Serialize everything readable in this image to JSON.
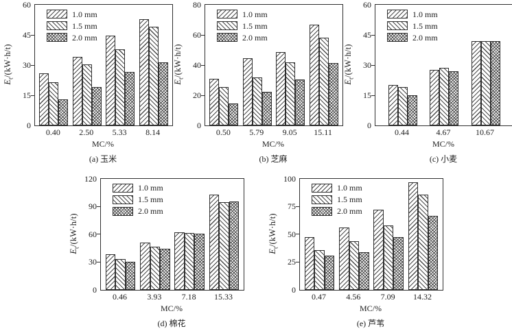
{
  "figure": {
    "background": "#ffffff",
    "axis_color": "#2e2e2e",
    "hatch_color": "#4a4a4a",
    "text_color": "#1b1b1b"
  },
  "legend": {
    "position": "top-left-inside",
    "items": [
      {
        "label": "1.0 mm",
        "pattern": "diag-up"
      },
      {
        "label": "1.5 mm",
        "pattern": "diag-down"
      },
      {
        "label": "2.0 mm",
        "pattern": "cross"
      }
    ]
  },
  "chart_data": [
    {
      "id": "a",
      "row": 1,
      "type": "bar",
      "caption": "(a) 玉米",
      "xlabel": "MC/%",
      "ylabel": {
        "base": "E",
        "sub": "t",
        "unit": "/(kW·h/t)"
      },
      "ylim": [
        0,
        60
      ],
      "yticks": [
        0,
        15,
        30,
        45,
        60
      ],
      "grid": false,
      "categories": [
        "0.40",
        "2.50",
        "5.33",
        "8.14"
      ],
      "series": [
        {
          "name": "1.0 mm",
          "pattern": "diag-up",
          "values": [
            26,
            34,
            44.5,
            53
          ]
        },
        {
          "name": "1.5 mm",
          "pattern": "diag-down",
          "values": [
            21.5,
            30.5,
            38,
            49
          ]
        },
        {
          "name": "2.0 mm",
          "pattern": "cross",
          "values": [
            13,
            19,
            26.5,
            31.5
          ]
        }
      ]
    },
    {
      "id": "b",
      "row": 1,
      "type": "bar",
      "caption": "(b) 芝麻",
      "xlabel": "MC/%",
      "ylabel": {
        "base": "E",
        "sub": "t",
        "unit": "/(kW·h/t)"
      },
      "ylim": [
        0,
        80
      ],
      "yticks": [
        0,
        20,
        40,
        60,
        80
      ],
      "grid": false,
      "categories": [
        "0.50",
        "5.79",
        "9.05",
        "15.11"
      ],
      "series": [
        {
          "name": "1.0 mm",
          "pattern": "diag-up",
          "values": [
            31,
            44.5,
            48.5,
            67
          ]
        },
        {
          "name": "1.5 mm",
          "pattern": "diag-down",
          "values": [
            25.5,
            32,
            42,
            58
          ]
        },
        {
          "name": "2.0 mm",
          "pattern": "cross",
          "values": [
            14.5,
            22.5,
            30.5,
            41.5
          ]
        }
      ]
    },
    {
      "id": "c",
      "row": 1,
      "type": "bar",
      "caption": "(c) 小麦",
      "xlabel": "MC/%",
      "ylabel": {
        "base": "E",
        "sub": "t",
        "unit": "/(kW·h/t)"
      },
      "ylim": [
        0,
        60
      ],
      "yticks": [
        0,
        15,
        30,
        45,
        60
      ],
      "grid": false,
      "categories": [
        "0.44",
        "4.67",
        "10.67"
      ],
      "series": [
        {
          "name": "1.0 mm",
          "pattern": "diag-up",
          "values": [
            20,
            27.5,
            42
          ]
        },
        {
          "name": "1.5 mm",
          "pattern": "diag-down",
          "values": [
            19,
            28.5,
            42
          ]
        },
        {
          "name": "2.0 mm",
          "pattern": "cross",
          "values": [
            15,
            27,
            42
          ]
        }
      ]
    },
    {
      "id": "d",
      "row": 2,
      "type": "bar",
      "caption": "(d) 棉花",
      "xlabel": "MC/%",
      "ylabel": {
        "base": "E",
        "sub": "t",
        "unit": "/(kW·h/t)"
      },
      "ylim": [
        0,
        120
      ],
      "yticks": [
        0,
        30,
        60,
        90,
        120
      ],
      "grid": false,
      "categories": [
        "0.46",
        "3.93",
        "7.18",
        "15.33"
      ],
      "series": [
        {
          "name": "1.0 mm",
          "pattern": "diag-up",
          "values": [
            38,
            51,
            62,
            103
          ]
        },
        {
          "name": "1.5 mm",
          "pattern": "diag-down",
          "values": [
            33,
            46,
            61,
            94.5
          ]
        },
        {
          "name": "2.0 mm",
          "pattern": "cross",
          "values": [
            30,
            44,
            60.5,
            95.5
          ]
        }
      ]
    },
    {
      "id": "e",
      "row": 2,
      "type": "bar",
      "caption": "(e) 芦苇",
      "xlabel": "MC/%",
      "ylabel": {
        "base": "E",
        "sub": "t",
        "unit": "/(kW·h/t)"
      },
      "ylim": [
        0,
        100
      ],
      "yticks": [
        0,
        25,
        50,
        75,
        100
      ],
      "grid": false,
      "categories": [
        "0.47",
        "4.56",
        "7.09",
        "14.32"
      ],
      "series": [
        {
          "name": "1.0 mm",
          "pattern": "diag-up",
          "values": [
            47,
            56,
            72,
            96.5
          ]
        },
        {
          "name": "1.5 mm",
          "pattern": "diag-down",
          "values": [
            35.5,
            43.5,
            58,
            85.5
          ]
        },
        {
          "name": "2.0 mm",
          "pattern": "cross",
          "values": [
            30.5,
            33.5,
            47.5,
            66.5
          ]
        }
      ]
    }
  ]
}
